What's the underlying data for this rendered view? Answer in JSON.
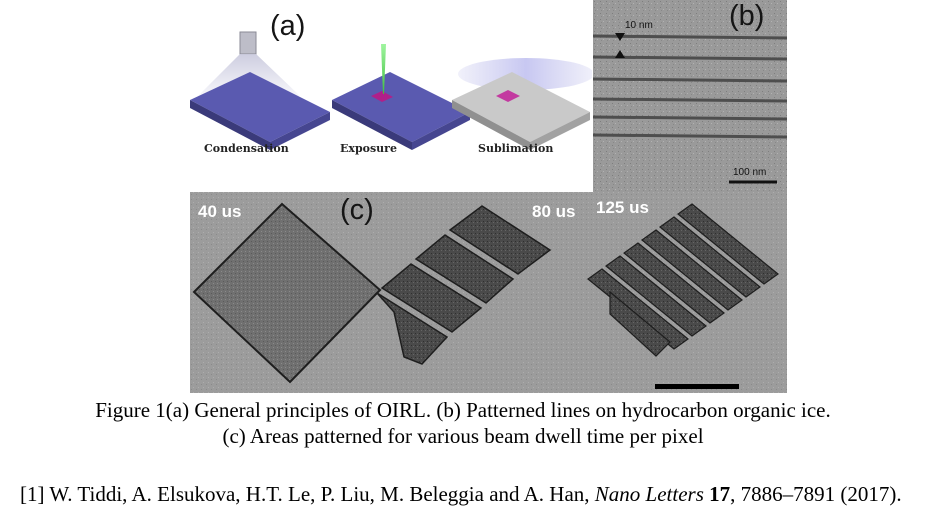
{
  "figure": {
    "panel_a": {
      "letter": "(a)",
      "steps": [
        "Condensation",
        "Exposure",
        "Sublimation"
      ]
    },
    "panel_b": {
      "letter": "(b)",
      "top_scale": "10 nm",
      "bottom_scale": "100 nm"
    },
    "panel_c": {
      "letter": "(c)",
      "dwell_labels": [
        "40 us",
        "80 us",
        "125 us"
      ]
    },
    "caption_line1": "Figure 1(a) General principles of OIRL. (b) Patterned lines on hydrocarbon organic ice.",
    "caption_line2": "(c) Areas patterned for various beam dwell time per pixel"
  },
  "reference": {
    "marker": "[1]",
    "authors": "W. Tiddi, A. Elsukova, H.T. Le, P. Liu, M. Beleggia and A. Han,",
    "journal": "Nano Letters",
    "volume": "17",
    "pages": "7886–7891 (2017)."
  },
  "colors": {
    "substrate_top": "#5a5ab0",
    "substrate_side": "#3a3a7a",
    "tem_background": "#9c9c9c",
    "exposure_beam": "#6fe06f",
    "exposed_patch": "#b0208a"
  }
}
